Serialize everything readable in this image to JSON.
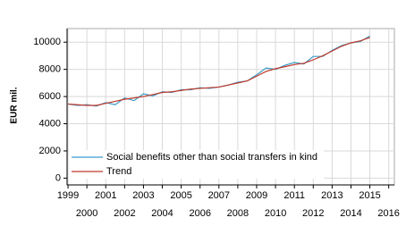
{
  "chart_data": {
    "type": "line",
    "y_label": "EUR mil.",
    "x": [
      1999,
      1999.5,
      2000,
      2000.5,
      2001,
      2001.5,
      2002,
      2002.5,
      2003,
      2003.5,
      2004,
      2004.5,
      2005,
      2005.5,
      2006,
      2006.5,
      2007,
      2007.5,
      2008,
      2008.5,
      2009,
      2009.5,
      2010,
      2010.5,
      2011,
      2011.5,
      2012,
      2012.5,
      2013,
      2013.5,
      2014,
      2014.5,
      2015
    ],
    "series": [
      {
        "name": "Social benefits other than social transfers in kind",
        "color": "#3a9bc9",
        "values": [
          5450,
          5350,
          5400,
          5300,
          5550,
          5400,
          5900,
          5700,
          6200,
          6050,
          6350,
          6300,
          6500,
          6500,
          6650,
          6600,
          6700,
          6850,
          7050,
          7150,
          7600,
          8100,
          8000,
          8300,
          8500,
          8400,
          8950,
          8950,
          9400,
          9750,
          9950,
          10050,
          10450
        ]
      },
      {
        "name": "Trend",
        "color": "#c0392b",
        "values": [
          5450,
          5400,
          5350,
          5350,
          5500,
          5650,
          5800,
          5900,
          6000,
          6150,
          6300,
          6350,
          6450,
          6550,
          6600,
          6650,
          6700,
          6850,
          7000,
          7150,
          7500,
          7850,
          8050,
          8200,
          8350,
          8450,
          8700,
          9000,
          9350,
          9700,
          9950,
          10100,
          10350
        ]
      }
    ],
    "xlim": [
      1998.95,
      2016.3
    ],
    "ylim": [
      -500,
      11000
    ],
    "xticks": [
      1999,
      2000,
      2001,
      2002,
      2003,
      2004,
      2005,
      2006,
      2007,
      2008,
      2009,
      2010,
      2011,
      2012,
      2013,
      2014,
      2015,
      2016
    ],
    "yticks": [
      0,
      2000,
      4000,
      6000,
      8000,
      10000
    ],
    "grid": true,
    "legend": "lower-left"
  }
}
